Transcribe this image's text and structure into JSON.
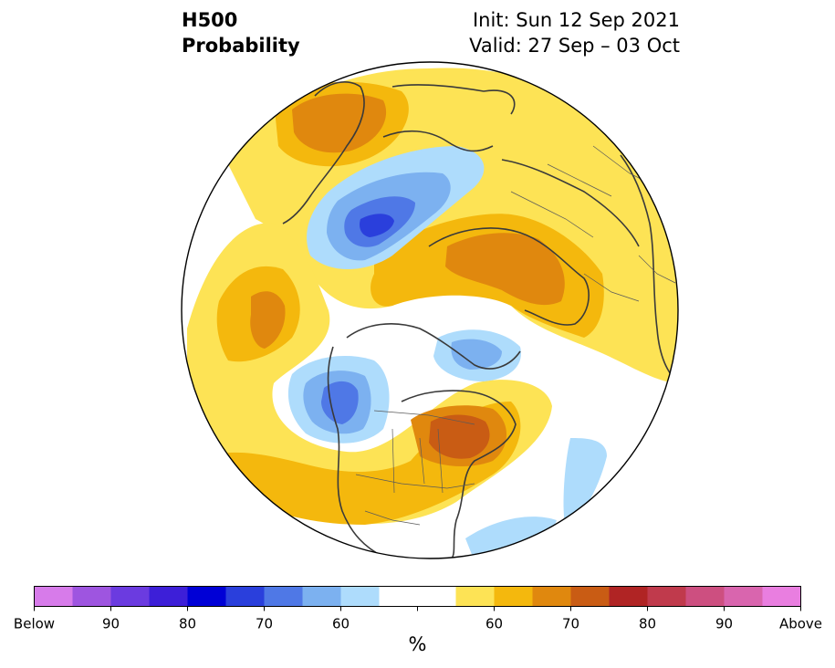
{
  "title": {
    "line1": "H500",
    "line2": "Probability"
  },
  "init": {
    "line1": "Init: Sun 12 Sep 2021",
    "line2": "Valid: 27 Sep – 03 Oct"
  },
  "colorbar": {
    "unit": "%",
    "colors": [
      "#d77bea",
      "#9e55e0",
      "#6b3be0",
      "#3d1fd8",
      "#0000d6",
      "#2a3fdc",
      "#4f78e6",
      "#7cb1f0",
      "#aedcfc",
      "#ffffff",
      "#ffffff",
      "#fde355",
      "#f4b80d",
      "#e0880e",
      "#c95c14",
      "#b02424",
      "#c03a4c",
      "#cd4f80",
      "#d965ae",
      "#e97ee0"
    ],
    "tick_labels": [
      "Below",
      "90",
      "80",
      "70",
      "60",
      "",
      "60",
      "70",
      "80",
      "90",
      "Above"
    ]
  },
  "map": {
    "projection": "north-polar-stereographic",
    "field": "500 hPa height anomaly probability",
    "anomalies": [
      {
        "region": "North Pacific / Gulf of Alaska",
        "sign": "below",
        "category": "70-80"
      },
      {
        "region": "Western Canada",
        "sign": "below",
        "category": "70-80"
      },
      {
        "region": "Hudson Bay / Eastern Canada",
        "sign": "above",
        "category": "70-80"
      },
      {
        "region": "Northern Europe / Scandinavia",
        "sign": "below",
        "category": "70-80"
      },
      {
        "region": "Western Russia",
        "sign": "above",
        "category": "70"
      },
      {
        "region": "East Asia",
        "sign": "above",
        "category": "65"
      },
      {
        "region": "Western Atlantic",
        "sign": "below",
        "category": "60"
      }
    ]
  }
}
